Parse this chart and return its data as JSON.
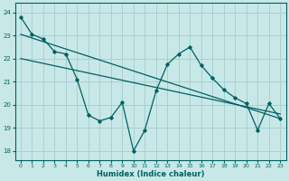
{
  "xlabel": "Humidex (Indice chaleur)",
  "background_color": "#c8e8e8",
  "grid_color": "#a8d0d0",
  "line_color": "#006060",
  "xlim": [
    -0.5,
    23.5
  ],
  "ylim": [
    17.6,
    24.4
  ],
  "yticks": [
    18,
    19,
    20,
    21,
    22,
    23,
    24
  ],
  "xticks": [
    0,
    1,
    2,
    3,
    4,
    5,
    6,
    7,
    8,
    9,
    10,
    11,
    12,
    13,
    14,
    15,
    16,
    17,
    18,
    19,
    20,
    21,
    22,
    23
  ],
  "zigzag": {
    "x": [
      0,
      1,
      2,
      3,
      4,
      5,
      6,
      7,
      8,
      9,
      10,
      11,
      12,
      13,
      14,
      15,
      16,
      17,
      18,
      19,
      20,
      21,
      22,
      23
    ],
    "y": [
      23.8,
      23.05,
      22.85,
      22.3,
      22.2,
      21.1,
      19.55,
      19.3,
      19.45,
      20.1,
      18.0,
      18.9,
      20.6,
      21.75,
      22.2,
      22.5,
      21.7,
      21.15,
      20.65,
      20.3,
      20.05,
      18.9,
      20.05,
      19.4
    ]
  },
  "trend1_x": [
    0,
    23
  ],
  "trend1_y": [
    23.05,
    19.4
  ],
  "trend2_x": [
    0,
    23
  ],
  "trend2_y": [
    22.0,
    19.6
  ]
}
